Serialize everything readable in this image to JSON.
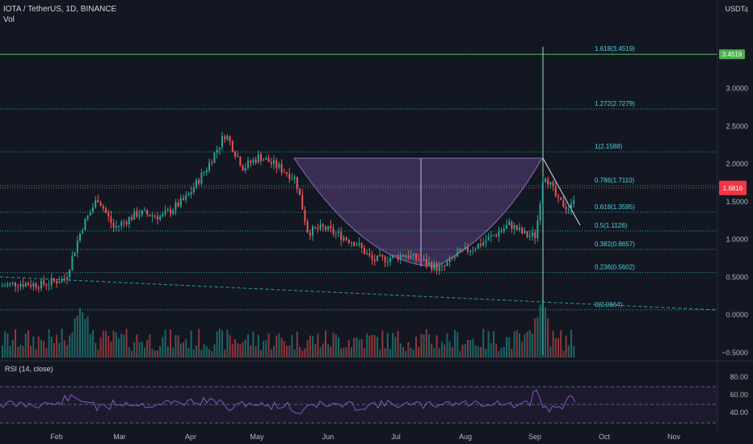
{
  "header": {
    "symbol": "IOTA / TetherUS, 1D, BINANCE",
    "vol_label": "Vol",
    "currency": "USDT",
    "top_price": "4"
  },
  "price_axis": [
    "3.0000",
    "2.5000",
    "2.0000",
    "1.5000",
    "1.0000",
    "0.5000",
    "0.0000",
    "−0.5000"
  ],
  "rsi": {
    "label": "RSI (14, close)",
    "ticks": [
      "80.00",
      "60.00",
      "40.00"
    ]
  },
  "time_axis": [
    "Feb",
    "Mar",
    "Apr",
    "May",
    "Jun",
    "Jul",
    "Aug",
    "Sep",
    "Oct",
    "Nov"
  ],
  "fib_levels": [
    {
      "label": "1.618(3.4519)",
      "value": 3.4519
    },
    {
      "label": "1.272(2.7279)",
      "value": 2.7279
    },
    {
      "label": "1(2.1588)",
      "value": 2.1588
    },
    {
      "label": "0.786(1.7110)",
      "value": 1.711
    },
    {
      "label": "0.618(1.3595)",
      "value": 1.3595
    },
    {
      "label": "0.5(1.1126)",
      "value": 1.1126
    },
    {
      "label": "0.382(0.8657)",
      "value": 0.8657
    },
    {
      "label": "0.236(0.5602)",
      "value": 0.5602
    },
    {
      "label": "0(0.0664)",
      "value": 0.0664
    }
  ],
  "price_tags": {
    "target": "3.4519",
    "last": "1.6816"
  },
  "colors": {
    "background": "#131722",
    "up": "#26a69a",
    "down": "#ef5350",
    "fib": "#2a9d9d",
    "fib_text": "#4dd0e1",
    "target": "#4caf50",
    "cup": "#6a4c93",
    "rsi": "#7e57c2",
    "last_price": "#f23645"
  }
}
